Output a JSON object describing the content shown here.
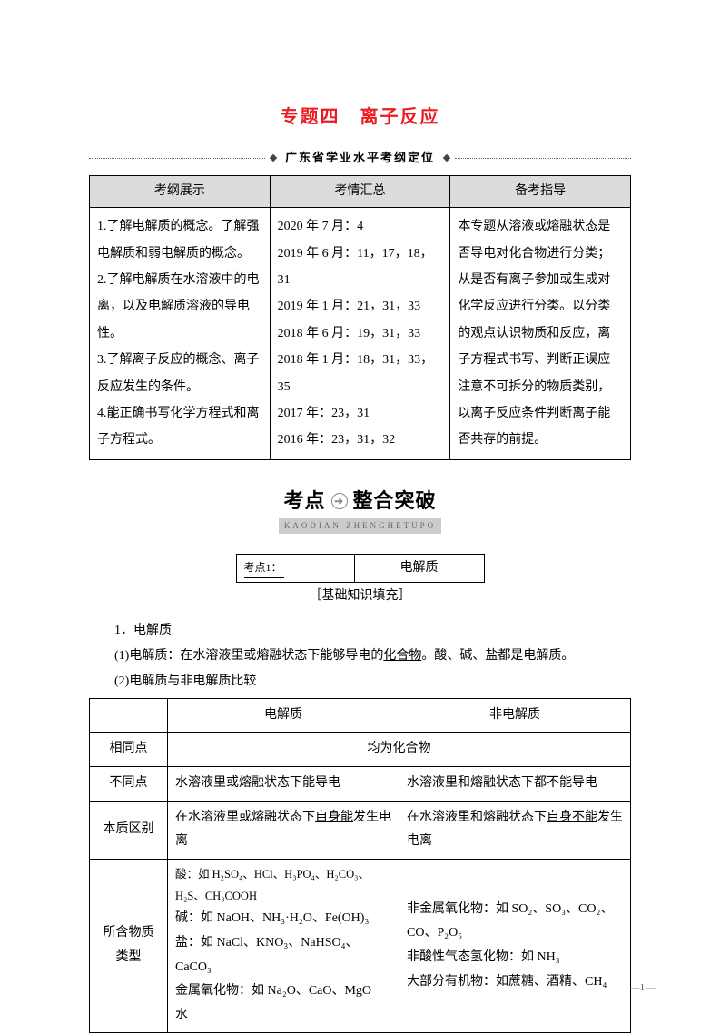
{
  "title": "专题四　离子反应",
  "subtitle": "广东省学业水平考纲定位",
  "outline": {
    "headers": [
      "考纲展示",
      "考情汇总",
      "备考指导"
    ],
    "col1": "1.了解电解质的概念。了解强电解质和弱电解质的概念。\n2.了解电解质在水溶液中的电离，以及电解质溶液的导电性。\n3.了解离子反应的概念、离子反应发生的条件。\n4.能正确书写化学方程式和离子方程式。",
    "col2": "2020 年 7 月：4\n2019 年 6 月：11，17，18，31\n2019 年 1 月：21，31，33\n2018 年 6 月：19，31，33\n2018 年 1 月：18，31，33，35\n2017 年：23，31\n2016 年：23，31，32",
    "col3": "本专题从溶液或熔融状态是否导电对化合物进行分类；从是否有离子参加或生成对化学反应进行分类。以分类的观点认识物质和反应，离子方程式书写、判断正误应注意不可拆分的物质类别，以离子反应条件判断离子能否共存的前提。"
  },
  "kaodian": {
    "main_l": "考点",
    "main_r": "整合突破",
    "sub": "KAODIAN ZHENGHETUPO"
  },
  "tag": {
    "left": "考点1：",
    "right": "电解质"
  },
  "fill_note": "［基础知识填充］",
  "sec1_title": "1．电解质",
  "sec1_p1_a": "(1)电解质：在水溶液里或熔融状态下能够导电的",
  "sec1_p1_b": "化合物",
  "sec1_p1_c": "。酸、碱、盐都是电解质。",
  "sec1_p2": "(2)电解质与非电解质比较",
  "compare": {
    "col_e": "电解质",
    "col_n": "非电解质",
    "row_same": "相同点",
    "same_val": "均为化合物",
    "row_diff": "不同点",
    "diff_e": "水溶液里或熔融状态下能导电",
    "diff_n": "水溶液里和熔融状态下都不能导电",
    "row_ess": "本质区别",
    "ess_e_a": "在水溶液里或熔融状态下",
    "ess_e_b": "自身能",
    "ess_e_c": "发生电离",
    "ess_n_a": "在水溶液里和熔融状态下",
    "ess_n_b": "自身不能",
    "ess_n_c": "发生电离",
    "row_type": "所含物质类型",
    "type_e_l1": "酸：如 H₂SO₄、HCl、H₃PO₄、H₂CO₃、H₂S、CH₃COOH",
    "type_e_l2": "碱：如 NaOH、NH₃·H₂O、Fe(OH)₃",
    "type_e_l3": "盐：如 NaCl、KNO₃、NaHSO₄、CaCO₃",
    "type_e_l4": "金属氧化物：如 Na₂O、CaO、MgO",
    "type_e_l5": "水",
    "type_n_l1": "非金属氧化物：如 SO₂、SO₃、CO₂、CO、P₂O₅",
    "type_n_l2": "非酸性气态氢化物：如 NH₃",
    "type_n_l3": "大部分有机物：如蔗糖、酒精、CH₄"
  },
  "page_number": "1",
  "colors": {
    "title": "#ed1c24",
    "header_bg": "#dcdcdc",
    "border": "#000000",
    "text": "#000000"
  }
}
